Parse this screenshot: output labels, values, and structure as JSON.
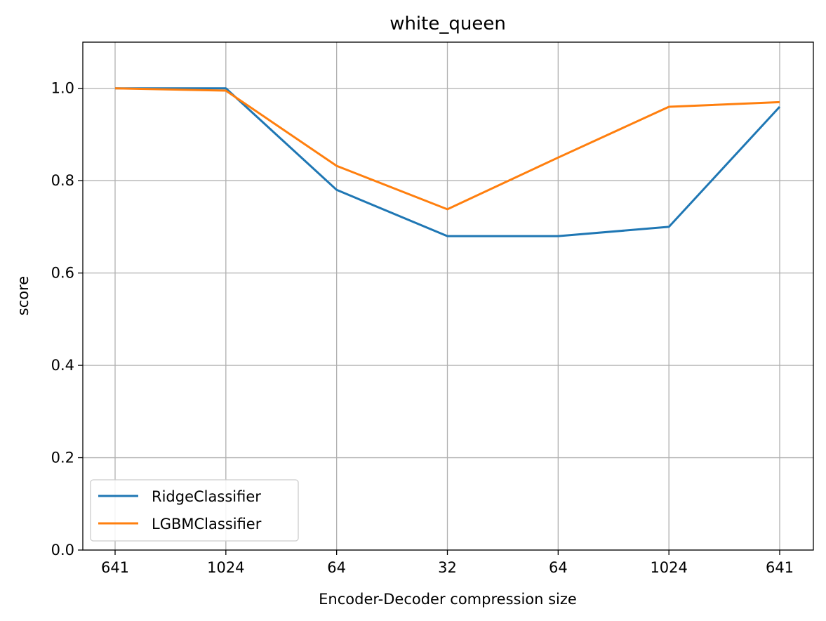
{
  "chart_data": {
    "type": "line",
    "title": "white_queen",
    "xlabel": "Encoder-Decoder compression size",
    "ylabel": "score",
    "categories": [
      "641",
      "1024",
      "64",
      "32",
      "64",
      "1024",
      "641"
    ],
    "ylim": [
      0,
      1.1
    ],
    "yticks": [
      "0.0",
      "0.2",
      "0.4",
      "0.6",
      "0.8",
      "1.0"
    ],
    "grid": true,
    "legend_position": "lower-left",
    "series": [
      {
        "name": "RidgeClassifier",
        "color": "#1f77b4",
        "values": [
          1.0,
          1.0,
          0.78,
          0.68,
          0.68,
          0.7,
          0.96
        ]
      },
      {
        "name": "LGBMClassifier",
        "color": "#ff7f0e",
        "values": [
          1.0,
          0.995,
          0.832,
          0.738,
          0.85,
          0.96,
          0.97
        ]
      }
    ]
  }
}
